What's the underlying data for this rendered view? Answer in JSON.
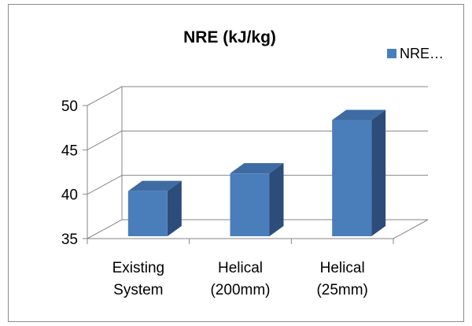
{
  "chart_data": {
    "type": "bar",
    "title": "NRE (kJ/kg)",
    "categories": [
      [
        "Existing",
        "System"
      ],
      [
        "Helical",
        "(200mm)"
      ],
      [
        "Helical",
        "(25mm)"
      ]
    ],
    "series": [
      {
        "name": "NRE…",
        "values": [
          40,
          42,
          48
        ],
        "color": "#4a7ebb"
      }
    ],
    "ylim": [
      35,
      50
    ],
    "yticks": [
      "35",
      "40",
      "45",
      "50"
    ],
    "grid": true,
    "legend": "top-right",
    "style": "3d-column"
  }
}
